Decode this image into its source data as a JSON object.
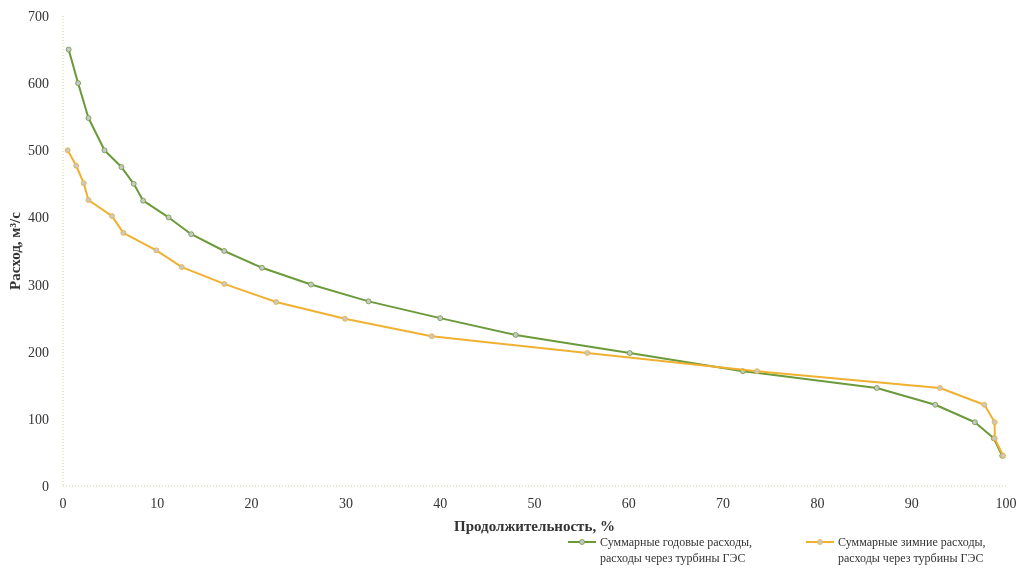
{
  "chart_data": {
    "type": "line",
    "xlabel": "Продолжительность, %",
    "ylabel": "Расход, м³/с",
    "xlim": [
      0,
      100
    ],
    "xticks": [
      0,
      10,
      20,
      30,
      40,
      50,
      60,
      70,
      80,
      90,
      100
    ],
    "ylim": [
      0,
      700
    ],
    "yticks": [
      0,
      100,
      200,
      300,
      400,
      500,
      600,
      700
    ],
    "legend": "bottom",
    "marker": "circle",
    "line_style": "solid",
    "series": [
      {
        "name": "Суммарные годовые расходы, расходы через турбины ГЭС",
        "color": "#6b9a3a",
        "x": [
          0.6,
          1.6,
          2.7,
          4.4,
          6.2,
          7.5,
          8.5,
          11.2,
          13.6,
          17.1,
          21.1,
          26.3,
          32.4,
          40,
          48,
          60.1,
          72.1,
          86.3,
          92.5,
          96.7,
          98.7,
          99.6
        ],
        "values": [
          650,
          600,
          548,
          500,
          475,
          450,
          425,
          400,
          375,
          350,
          325,
          300,
          275,
          250,
          225,
          198,
          171,
          146,
          121,
          95,
          71,
          45
        ]
      },
      {
        "name": "Суммарные зимние расходы, расходы через турбины ГЭС",
        "color": "#f0b030",
        "x": [
          0.5,
          1.4,
          2.2,
          2.7,
          5.2,
          6.4,
          9.9,
          12.6,
          17.1,
          22.6,
          29.9,
          39.1,
          55.6,
          73.6,
          93,
          97.7,
          98.8,
          98.8,
          99.7
        ],
        "values": [
          500,
          477,
          451,
          426,
          402,
          377,
          351,
          326,
          301,
          274,
          249,
          223,
          198,
          171,
          146,
          121,
          95,
          71,
          45
        ]
      }
    ]
  }
}
